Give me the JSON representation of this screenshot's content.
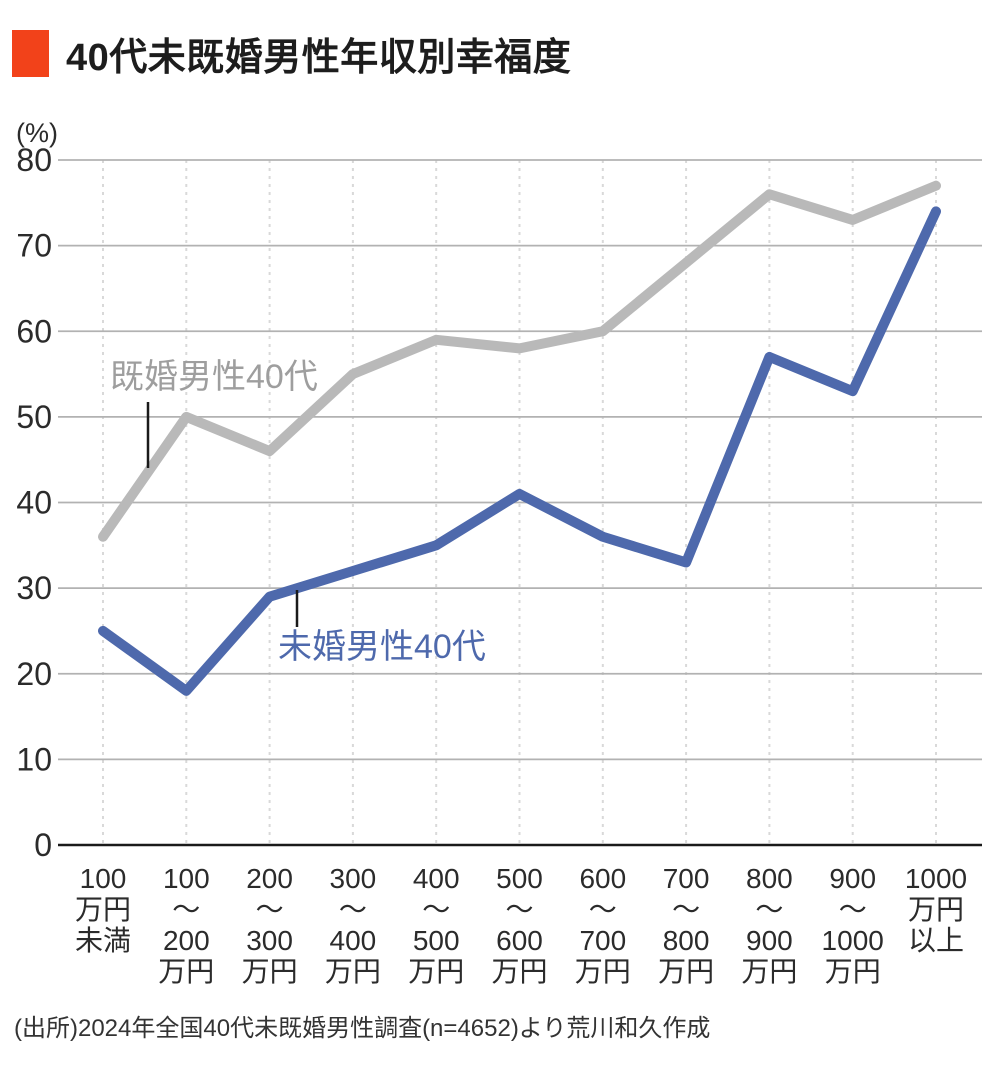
{
  "header": {
    "title": "40代未既婚男性年収別幸福度",
    "accent_color": "#f2421a"
  },
  "source_note": "(出所)2024年全国40代未既婚男性調査(n=4652)より荒川和久作成",
  "chart_data": {
    "type": "line",
    "title": "40代未既婚男性年収別幸福度",
    "unit_label": "(%)",
    "ylim": [
      0,
      80
    ],
    "yticks": [
      0,
      10,
      20,
      30,
      40,
      50,
      60,
      70,
      80
    ],
    "grid": true,
    "legend_position": "inline-annotations",
    "categories": [
      "100万円未満",
      "100〜200万円",
      "200〜300万円",
      "300〜400万円",
      "400〜500万円",
      "500〜600万円",
      "600〜700万円",
      "700〜800万円",
      "800〜900万円",
      "900〜1000万円",
      "1000万円以上"
    ],
    "category_label_lines": [
      [
        "100",
        "万円",
        "未満"
      ],
      [
        "100",
        "〜",
        "200",
        "万円"
      ],
      [
        "200",
        "〜",
        "300",
        "万円"
      ],
      [
        "300",
        "〜",
        "400",
        "万円"
      ],
      [
        "400",
        "〜",
        "500",
        "万円"
      ],
      [
        "500",
        "〜",
        "600",
        "万円"
      ],
      [
        "600",
        "〜",
        "700",
        "万円"
      ],
      [
        "700",
        "〜",
        "800",
        "万円"
      ],
      [
        "800",
        "〜",
        "900",
        "万円"
      ],
      [
        "900",
        "〜",
        "1000",
        "万円"
      ],
      [
        "1000",
        "万円",
        "以上"
      ]
    ],
    "series": [
      {
        "id": "married",
        "name": "既婚男性40代",
        "color": "#b9b9b9",
        "label_color": "#9e9e9e",
        "values": [
          36,
          50,
          46,
          55,
          59,
          58,
          60,
          68,
          76,
          73,
          77
        ]
      },
      {
        "id": "unmarried",
        "name": "未婚男性40代",
        "color": "#4e69ac",
        "label_color": "#4e69ac",
        "values": [
          25,
          18,
          29,
          32,
          35,
          41,
          36,
          33,
          57,
          53,
          74
        ]
      }
    ],
    "source": "(出所)2024年全国40代未既婚男性調査(n=4652)より荒川和久作成"
  }
}
